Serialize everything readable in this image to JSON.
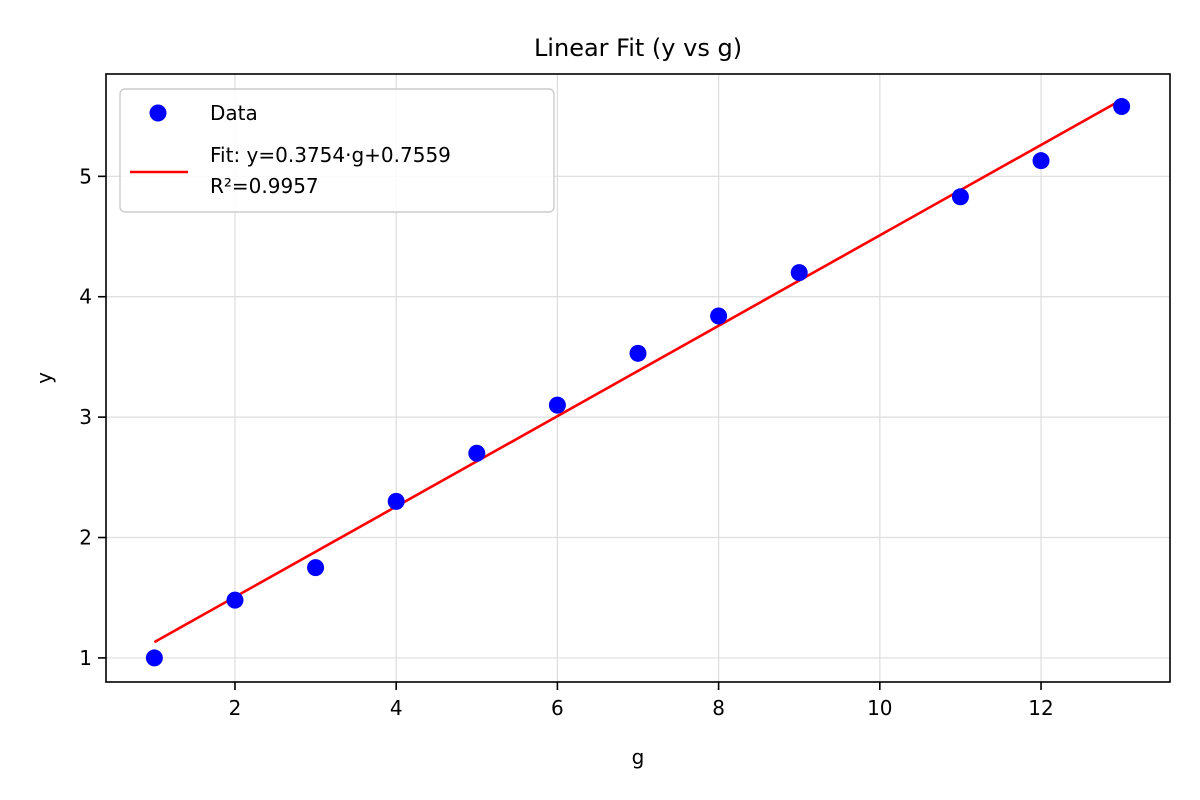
{
  "chart_data": {
    "type": "scatter",
    "title": "Linear Fit (y vs g)",
    "xlabel": "g",
    "ylabel": "y",
    "xlim": [
      0.4,
      13.6
    ],
    "ylim": [
      0.8,
      5.85
    ],
    "xticks": [
      2,
      4,
      6,
      8,
      10,
      12
    ],
    "yticks": [
      1,
      2,
      3,
      4,
      5
    ],
    "grid": true,
    "legend_position": "top-left",
    "colors": {
      "data": "#0000ff",
      "fit": "#ff0000",
      "grid": "#dddddd"
    },
    "series": [
      {
        "name": "Data",
        "kind": "scatter",
        "points": [
          [
            1,
            1.0
          ],
          [
            2,
            1.48
          ],
          [
            3,
            1.75
          ],
          [
            4,
            2.3
          ],
          [
            5,
            2.7
          ],
          [
            6,
            3.1
          ],
          [
            7,
            3.53
          ],
          [
            8,
            3.84
          ],
          [
            9,
            4.2
          ],
          [
            11,
            4.83
          ],
          [
            12,
            5.13
          ],
          [
            13,
            5.58
          ]
        ]
      },
      {
        "name": "Fit: y=0.3754·g+0.7559",
        "name_line2": "R²=0.9957",
        "kind": "line",
        "points": [
          [
            1,
            1.1313
          ],
          [
            13,
            5.6361
          ]
        ]
      }
    ]
  }
}
